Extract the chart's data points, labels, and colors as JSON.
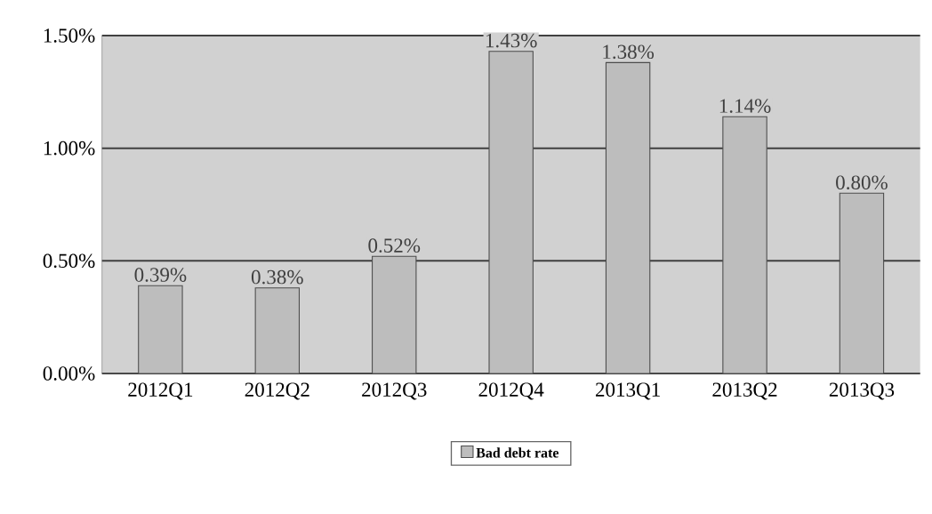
{
  "chart_data": {
    "type": "bar",
    "categories": [
      "2012Q1",
      "2012Q2",
      "2012Q3",
      "2012Q4",
      "2013Q1",
      "2013Q2",
      "2013Q3"
    ],
    "series": [
      {
        "name": "Bad debt rate",
        "color": "#bdbdbd",
        "values": [
          0.39,
          0.38,
          0.52,
          1.43,
          1.38,
          1.14,
          0.8
        ],
        "value_labels": [
          "0.39%",
          "0.38%",
          "0.52%",
          "1.43%",
          "1.38%",
          "1.14%",
          "0.80%"
        ]
      }
    ],
    "ylim": [
      0,
      1.5
    ],
    "yticks": [
      {
        "value": 0,
        "label": "0.00%"
      },
      {
        "value": 0.5,
        "label": "0.50%"
      },
      {
        "value": 1.0,
        "label": "1.00%"
      },
      {
        "value": 1.5,
        "label": "1.50%"
      }
    ],
    "grid": "y",
    "legend": "bottom"
  }
}
